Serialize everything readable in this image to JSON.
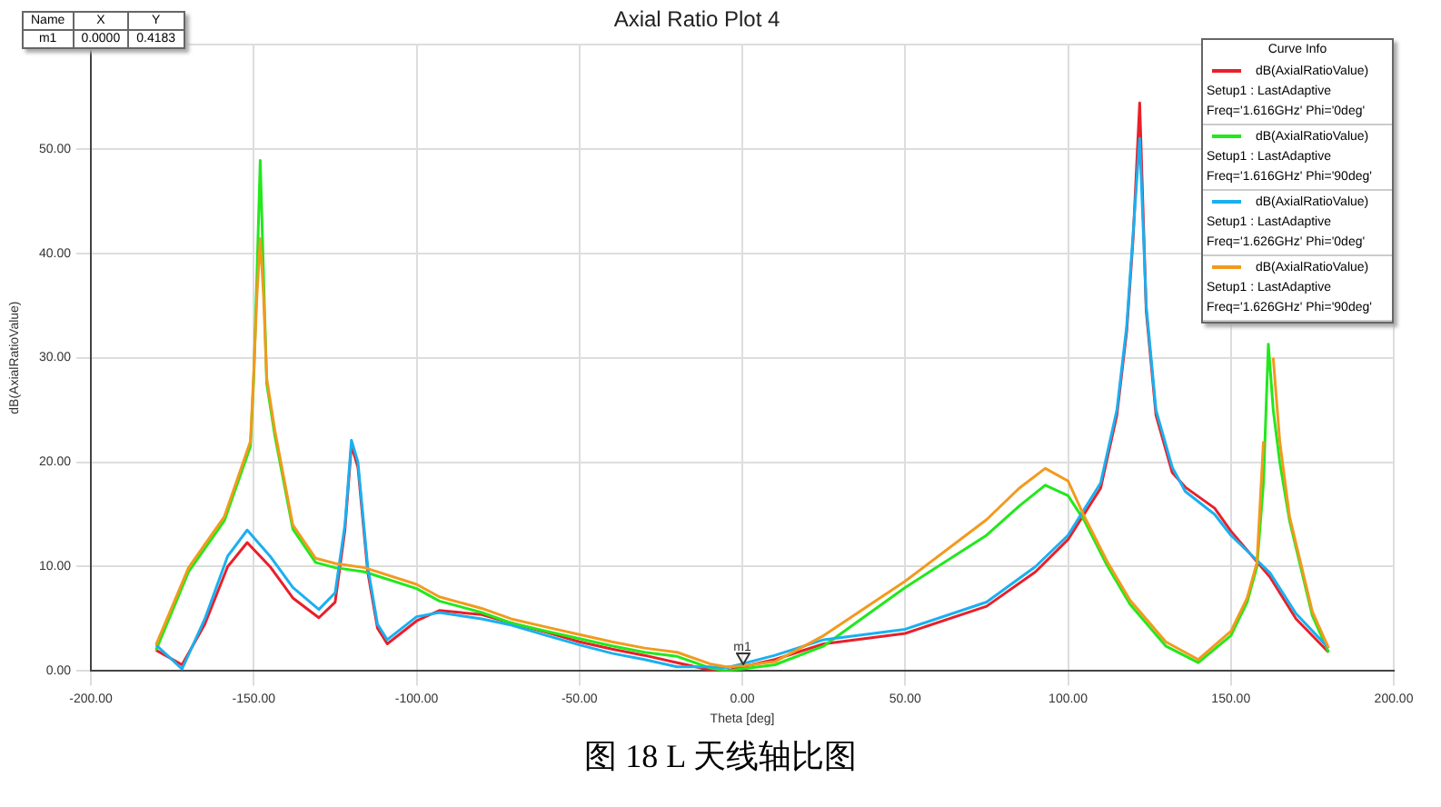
{
  "chart_data": {
    "type": "line",
    "title": "Axial Ratio Plot 4",
    "xlabel": "Theta [deg]",
    "ylabel": "dB(AxialRatioValue)",
    "legend_title": "Curve Info",
    "legend": "top right",
    "grid": true,
    "marker": "none",
    "line_style": "solid",
    "xlim": [
      -200,
      200
    ],
    "xticks": [
      {
        "value": -200,
        "label": "-200.00"
      },
      {
        "value": -150,
        "label": "-150.00"
      },
      {
        "value": -100,
        "label": "-100.00"
      },
      {
        "value": -50,
        "label": "-50.00"
      },
      {
        "value": 0,
        "label": "0.00"
      },
      {
        "value": 50,
        "label": "50.00"
      },
      {
        "value": 100,
        "label": "100.00"
      },
      {
        "value": 150,
        "label": "150.00"
      },
      {
        "value": 200,
        "label": "200.00"
      }
    ],
    "ylim": [
      0,
      60
    ],
    "yticks": [
      {
        "value": 0,
        "label": "0.00"
      },
      {
        "value": 10,
        "label": "10.00"
      },
      {
        "value": 20,
        "label": "20.00"
      },
      {
        "value": 30,
        "label": "30.00"
      },
      {
        "value": 40,
        "label": "40.00"
      },
      {
        "value": 50,
        "label": "50.00"
      },
      {
        "value": 60,
        "label": null
      }
    ],
    "series": [
      {
        "name": "dB(AxialRatioValue)\nSetup1 : LastAdaptive\nFreq='1.616GHz' Phi='0deg'",
        "color": "#e8202a",
        "x": [
          -180,
          -172,
          -165,
          -158,
          -152,
          -145,
          -138,
          -130,
          -125,
          -122,
          -120,
          -118,
          -115,
          -112,
          -109,
          -100,
          -93,
          -80,
          -71,
          -60,
          -50,
          -40,
          -30,
          -20,
          -10,
          -5,
          0,
          10,
          25,
          50,
          75,
          90,
          100,
          110,
          115,
          118,
          120,
          122,
          124,
          127,
          132,
          136,
          145,
          150,
          162,
          170,
          180
        ],
        "values": [
          2.0,
          0.6,
          4.5,
          10,
          12.3,
          10,
          7,
          5.1,
          6.6,
          13.5,
          21.6,
          19.5,
          9.5,
          4.1,
          2.6,
          4.8,
          5.8,
          5.4,
          4.6,
          3.7,
          2.8,
          2.1,
          1.5,
          0.8,
          0.1,
          0,
          0.4,
          1.1,
          2.6,
          3.6,
          6.2,
          9.5,
          12.6,
          17.5,
          24.5,
          32.5,
          41.5,
          54.4,
          34.5,
          24.5,
          19,
          17.6,
          15.6,
          13.4,
          9.0,
          5.0,
          1.8
        ]
      },
      {
        "name": "dB(AxialRatioValue)\nSetup1 : LastAdaptive\nFreq='1.616GHz' Phi='90deg'",
        "color": "#22e81c",
        "x": [
          -180,
          -170,
          -159,
          -151,
          -150,
          -149,
          -148,
          -147,
          -146,
          -143.5,
          -138,
          -131,
          -125,
          -116,
          -100,
          -93,
          -80,
          -71,
          -60,
          -50,
          -40,
          -30,
          -20,
          -10,
          -5,
          0,
          10,
          25,
          50,
          75,
          85,
          93,
          100,
          105,
          112,
          119,
          130,
          140,
          150,
          155,
          158,
          160,
          161.5,
          163,
          165,
          168,
          175,
          180
        ],
        "values": [
          2.0,
          9.5,
          14.4,
          21.5,
          28,
          38,
          48.9,
          38,
          27.5,
          22.5,
          13.6,
          10.4,
          9.9,
          9.5,
          7.9,
          6.7,
          5.6,
          4.6,
          3.8,
          3.1,
          2.4,
          1.8,
          1.4,
          0.3,
          0,
          0.2,
          0.6,
          2.4,
          8,
          13,
          15.8,
          17.8,
          16.8,
          14.4,
          10.1,
          6.4,
          2.4,
          0.8,
          3.4,
          6.6,
          10,
          18,
          31.3,
          25,
          20,
          14.4,
          5.3,
          1.8
        ]
      },
      {
        "name": "dB(AxialRatioValue)\nSetup1 : LastAdaptive\nFreq='1.626GHz' Phi='0deg'",
        "color": "#1ab0f0",
        "x": [
          -180,
          -172,
          -165,
          -158,
          -152,
          -145,
          -138,
          -130,
          -125,
          -122,
          -120,
          -118,
          -115,
          -112,
          -109,
          -100,
          -93,
          -80,
          -71,
          -60,
          -50,
          -40,
          -30,
          -20,
          -10,
          -5,
          0,
          10,
          25,
          50,
          75,
          90,
          100,
          110,
          115,
          118,
          120,
          122,
          124,
          127,
          132,
          136,
          145,
          150,
          162,
          170,
          180
        ],
        "values": [
          2.5,
          0.2,
          5,
          11,
          13.5,
          11,
          8,
          5.9,
          7.5,
          14,
          22.1,
          20,
          10,
          4.5,
          3.0,
          5.2,
          5.6,
          5.0,
          4.4,
          3.4,
          2.5,
          1.7,
          1.1,
          0.4,
          0.4,
          0.3,
          0.7,
          1.5,
          3.0,
          4.0,
          6.6,
          10,
          13,
          18,
          25,
          33,
          42,
          51,
          35,
          25,
          19.5,
          17.2,
          15,
          13,
          9.4,
          5.5,
          2.2
        ]
      },
      {
        "name": "dB(AxialRatioValue)\nSetup1 : LastAdaptive\nFreq='1.626GHz' Phi='90deg'",
        "color": "#f29a1e",
        "x": [
          -180,
          -170,
          -159,
          -151,
          -150,
          -149,
          -148,
          -147,
          -146,
          -143.5,
          -138,
          -131,
          -125,
          -116,
          -100,
          -93,
          -80,
          -71,
          -60,
          -50,
          -40,
          -30,
          -20,
          -10,
          -5,
          0,
          10,
          25,
          50,
          75,
          85,
          93,
          100,
          105,
          112,
          119,
          130,
          140,
          150,
          155,
          158,
          160,
          161.5,
          163,
          165,
          168,
          175,
          180
        ],
        "values": [
          2.5,
          9.9,
          14.8,
          22,
          28.5,
          36,
          41.4,
          36,
          28,
          23,
          14,
          10.8,
          10.3,
          9.9,
          8.3,
          7.1,
          6,
          5,
          4.2,
          3.5,
          2.8,
          2.2,
          1.8,
          0.7,
          0.4,
          0.5,
          0.9,
          3.4,
          8.6,
          14.5,
          17.5,
          19.4,
          18.2,
          14.8,
          10.5,
          6.8,
          2.8,
          1.1,
          3.8,
          7,
          10.4,
          22,
          null,
          30,
          22,
          14.8,
          5.7,
          2.2
        ]
      }
    ],
    "annotations": [
      {
        "text": "m1",
        "x": 0,
        "y": 0.4183
      },
      "Name\tX\tY\nm1\t0.0000\t0.4183",
      "图 18 L 天线轴比图"
    ]
  }
}
